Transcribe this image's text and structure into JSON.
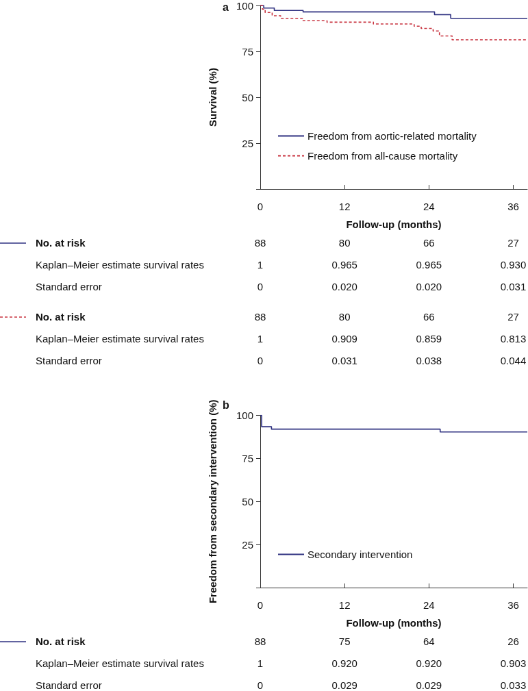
{
  "chart_data": [
    {
      "type": "step",
      "title": "a",
      "xlabel": "Follow-up (months)",
      "ylabel": "Survival (%)",
      "xlim": [
        0,
        38
      ],
      "xticks": [
        0,
        12,
        24,
        36
      ],
      "ylim": [
        0,
        100
      ],
      "yticks": [
        {
          "value": 0,
          "label": null
        },
        25,
        50,
        75,
        100
      ],
      "grid": false,
      "legend": "bottom left",
      "series": [
        {
          "name": "Freedom from aortic-related mortality",
          "color": "#2e3080",
          "line_style": "solid",
          "x": [
            0,
            0.5,
            2,
            6.1,
            24.8,
            27.1,
            38
          ],
          "values": [
            100,
            98.6,
            97.3,
            96.5,
            95.0,
            93.0,
            93.0
          ]
        },
        {
          "name": "Freedom from all-cause mortality",
          "color": "#c8333f",
          "line_style": "dashed",
          "x": [
            0,
            0.3,
            0.7,
            1.7,
            2.9,
            6.1,
            9.5,
            16.1,
            21.9,
            22.9,
            24.6,
            25.5,
            27.3,
            38
          ],
          "values": [
            100,
            98.0,
            96.2,
            94.4,
            93.0,
            91.7,
            90.9,
            89.9,
            88.7,
            87.5,
            86.1,
            83.4,
            81.3,
            81.3
          ]
        }
      ],
      "annotations": [
        "No. at risk",
        "88",
        "80",
        "66",
        "27",
        "Kaplan–Meier estimate survival rates",
        "1",
        "0.965",
        "0.965",
        "0.930",
        "Standard error",
        "0",
        "0.020",
        "0.020",
        "0.031",
        "No. at risk",
        "88",
        "80",
        "66",
        "27",
        "Kaplan–Meier estimate survival rates",
        "1",
        "0.909",
        "0.859",
        "0.813",
        "Standard error",
        "0",
        "0.031",
        "0.038",
        "0.044"
      ]
    },
    {
      "type": "step",
      "title": "b",
      "xlabel": "Follow-up (months)",
      "ylabel": "Freedom from secondary intervention (%)",
      "xlim": [
        0,
        38
      ],
      "xticks": [
        0,
        12,
        24,
        36
      ],
      "ylim": [
        0,
        100
      ],
      "yticks": [
        {
          "value": 0,
          "label": null
        },
        25,
        50,
        75,
        100
      ],
      "grid": false,
      "legend": "bottom left",
      "series": [
        {
          "name": "Secondary intervention",
          "color": "#2e3080",
          "line_style": "solid",
          "x": [
            0,
            0.2,
            1.6,
            25.6,
            38
          ],
          "values": [
            100,
            93.4,
            92.0,
            90.4,
            90.4
          ]
        }
      ],
      "annotations": [
        "No. at risk",
        "88",
        "75",
        "64",
        "26",
        "Kaplan–Meier estimate survival rates",
        "1",
        "0.920",
        "0.920",
        "0.903",
        "Standard error",
        "0",
        "0.029",
        "0.029",
        "0.033"
      ]
    }
  ]
}
